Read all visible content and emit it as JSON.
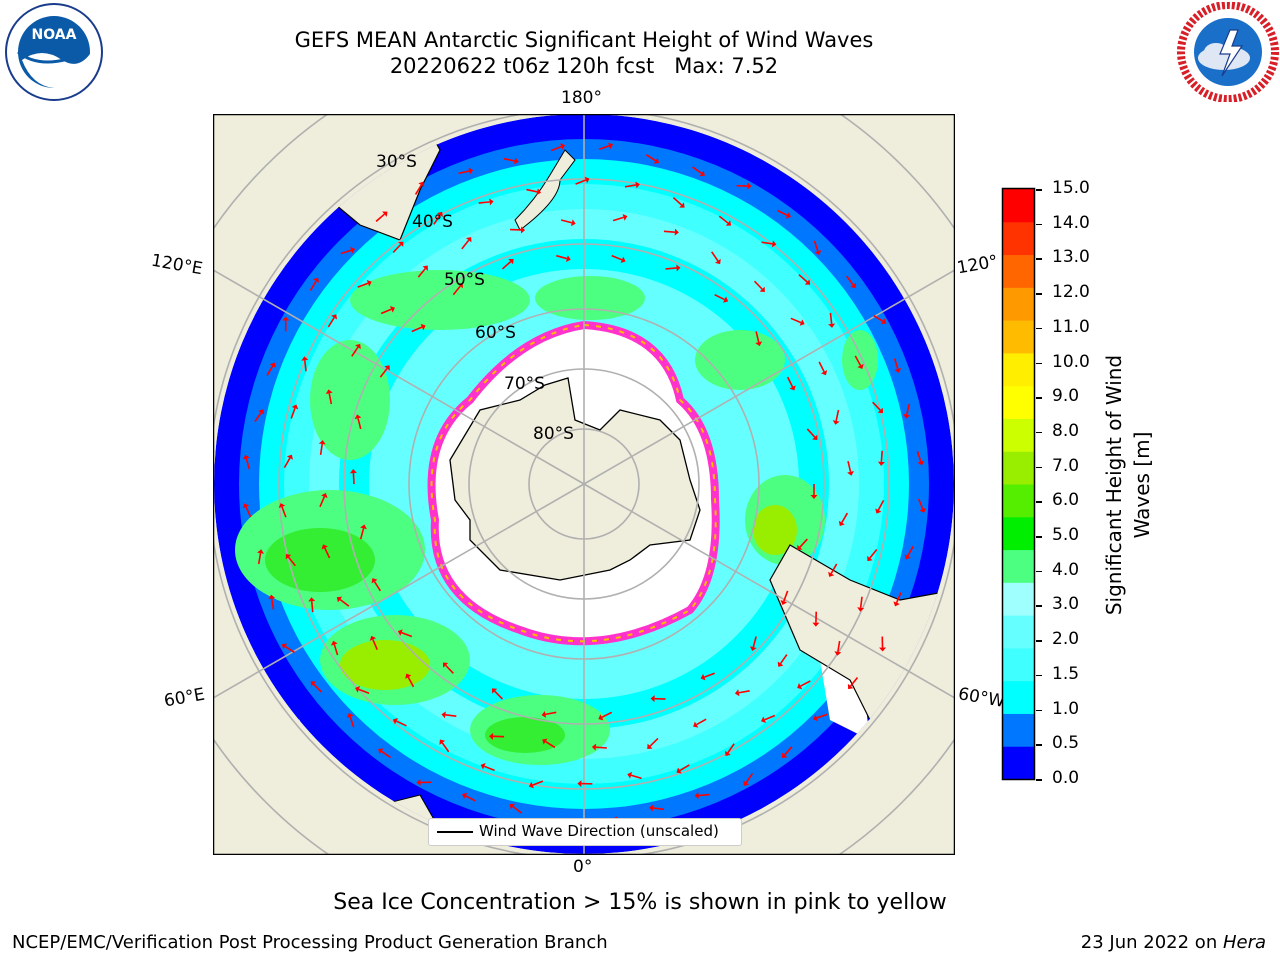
{
  "header": {
    "title_line1": "GEFS MEAN Antarctic Significant Height of Wind Waves",
    "title_line2": "20220622 t06z 120h fcst   Max: 7.52"
  },
  "logos": {
    "left": {
      "name": "noaa-logo",
      "text": "NOAA",
      "ring_text": "NATIONAL OCEANIC AND ATMOSPHERIC ADMINISTRATION · U.S. DEPARTMENT OF COMMERCE"
    },
    "right": {
      "name": "nws-logo",
      "ring_text": "NATIONAL WEATHER SERVICE"
    }
  },
  "map": {
    "projection": "south-polar-stereographic",
    "longitude_labels": {
      "top": "180°",
      "bottom": "0°",
      "upper_left": "120°E",
      "lower_left": "60°E",
      "upper_right": "120°",
      "lower_right": "60°W"
    },
    "latitude_labels": [
      "30°S",
      "40°S",
      "50°S",
      "60°S",
      "70°S",
      "80°S"
    ],
    "colors": {
      "land": "#efeddb",
      "ice": "#ffffff",
      "ocean_low": "#0000ff",
      "ocean_mid": "#00ffff",
      "ocean_high": "#33ff33",
      "arrows": "#ff0000",
      "grid": "#b0b0b0"
    },
    "legend": {
      "label": "Wind Wave Direction (unscaled)"
    },
    "note": "Sea Ice Concentration > 15% is shown in pink to yellow"
  },
  "colorbar": {
    "label": "Significant Height of Wind Waves [m]",
    "ticks": [
      "0.0",
      "0.5",
      "1.0",
      "1.5",
      "2.0",
      "3.0",
      "4.0",
      "5.0",
      "6.0",
      "7.0",
      "8.0",
      "9.0",
      "10.0",
      "11.0",
      "12.0",
      "13.0",
      "14.0",
      "15.0"
    ],
    "colors": [
      "#0000ff",
      "#0077ff",
      "#00ffff",
      "#40ffff",
      "#66ffff",
      "#9fffff",
      "#4dff80",
      "#00ee00",
      "#55ee00",
      "#99ee00",
      "#ccff00",
      "#ffff00",
      "#ffee00",
      "#ffbb00",
      "#ff9900",
      "#ff6600",
      "#ff3300",
      "#ff0000"
    ]
  },
  "footer": {
    "left": "NCEP/EMC/Verification Post Processing Product Generation Branch",
    "right_prefix": "23 Jun 2022 on ",
    "right_host": "Hera"
  }
}
